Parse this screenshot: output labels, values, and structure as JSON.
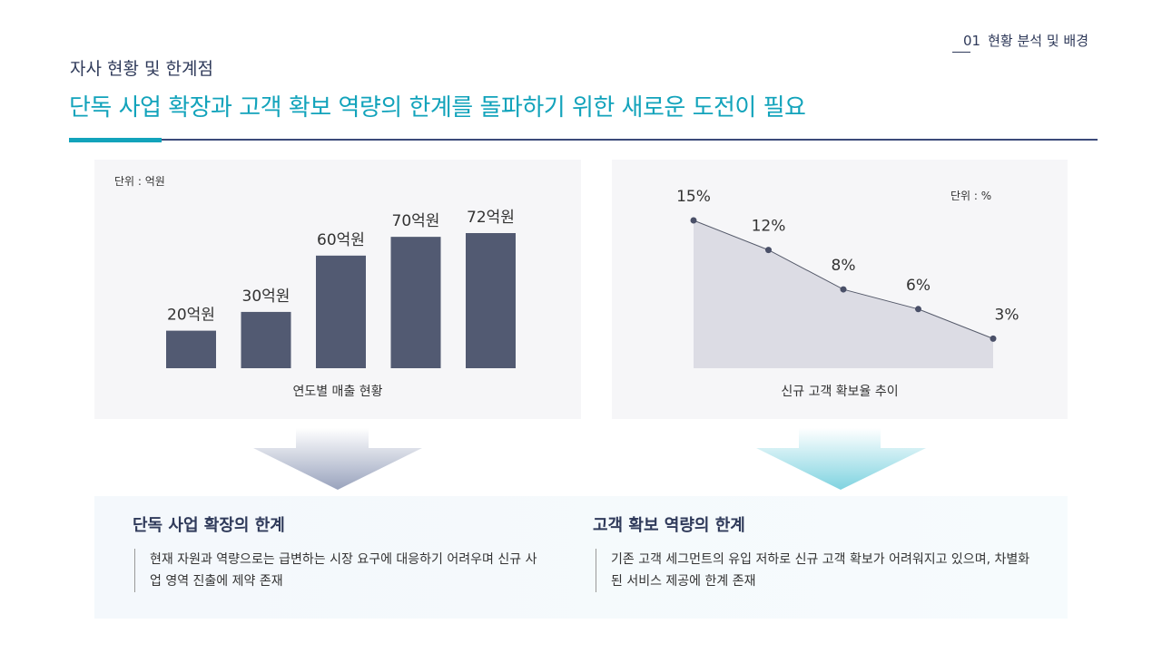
{
  "header": {
    "section_number": "01",
    "section_label": "현황 분석 및 배경",
    "subtitle": "자사 현황 및 한계점",
    "title": "단독 사업 확장과 고객 확보 역량의 한계를 돌파하기 위한 새로운 도전이 필요"
  },
  "colors": {
    "accent": "#12a3bb",
    "navy": "#2f3a5a",
    "bar": "#525a72",
    "area": "#dcdce4"
  },
  "chart_data": [
    {
      "type": "bar",
      "unit_label": "단위 : 억원",
      "title": "연도별 매출 현황",
      "values": [
        20,
        30,
        60,
        70,
        72
      ],
      "data_labels": [
        "20억원",
        "30억원",
        "60억원",
        "70억원",
        "72억원"
      ],
      "ylim": [
        0,
        80
      ],
      "grid": false
    },
    {
      "type": "area",
      "unit_label": "단위  : %",
      "title": "신규 고객 확보율 추이",
      "values": [
        15,
        12,
        8,
        6,
        3
      ],
      "data_labels": [
        "15%",
        "12%",
        "8%",
        "6%",
        "3%"
      ],
      "ylim": [
        0,
        15
      ],
      "grid": false
    }
  ],
  "limits": [
    {
      "heading": "단독 사업 확장의 한계",
      "text": "현재 자원과 역량으로는 급변하는 시장 요구에 대응하기 어려우며 신규 사업 영역 진출에 제약 존재"
    },
    {
      "heading": "고객 확보 역량의 한계",
      "text": "기존 고객 세그먼트의 유입 저하로 신규 고객 확보가 어려워지고 있으며, 차별화된 서비스 제공에 한계 존재"
    }
  ]
}
